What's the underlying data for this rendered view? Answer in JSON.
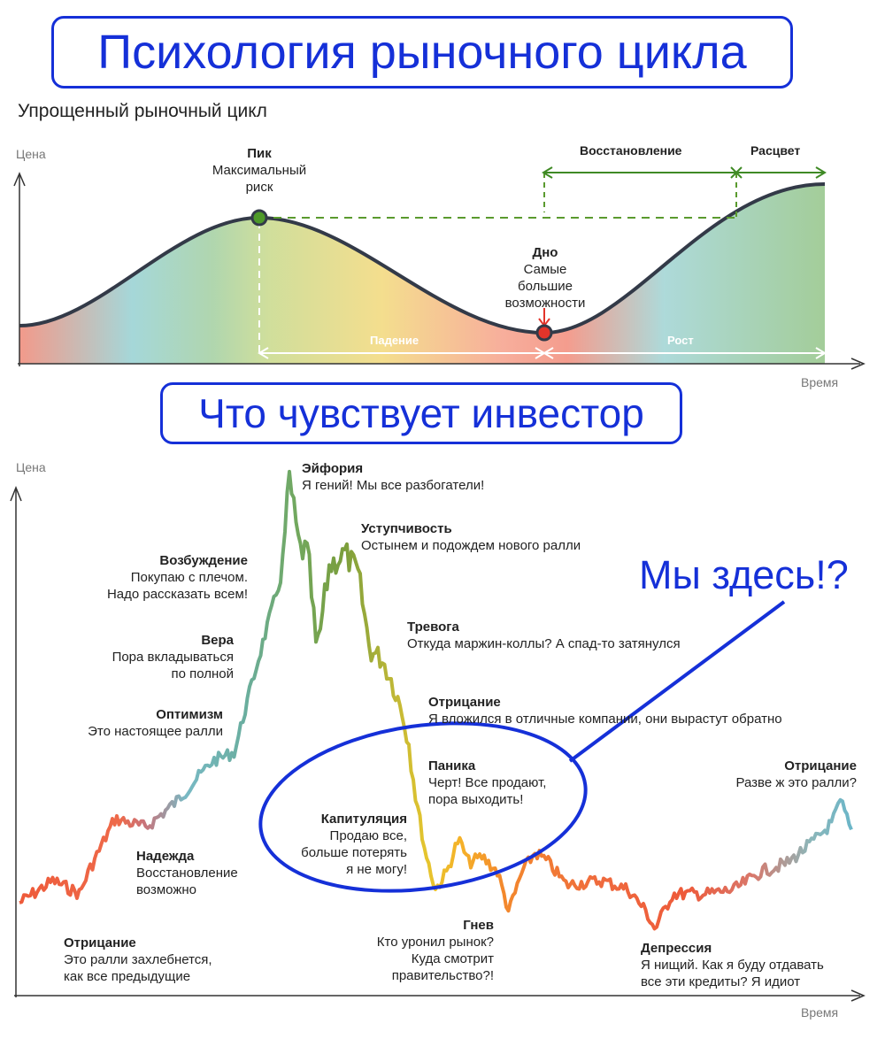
{
  "header": {
    "title": "Психология рыночного цикла",
    "subtitle": "Упрощенный рыночный цикл",
    "second_title": "Что чувствует инвестор",
    "annotation": "Мы здесь!?"
  },
  "top_chart": {
    "y_axis": "Цена",
    "x_axis": "Время",
    "peak": {
      "title": "Пик",
      "text": [
        "Максимальный",
        "риск"
      ]
    },
    "bottom": {
      "title": "Дно",
      "text": [
        "Самые",
        "большие",
        "возможности"
      ]
    },
    "fall_label": "Падение",
    "growth_label": "Рост",
    "recovery_label": "Восстановление",
    "bloom_label": "Расцвет"
  },
  "bottom_chart": {
    "y_axis": "Цена",
    "x_axis": "Время",
    "stages": [
      {
        "title": "Отрицание",
        "text": [
          "Это ралли захлебнется,",
          "как все предыдущие"
        ]
      },
      {
        "title": "Надежда",
        "text": [
          "Восстановление",
          "возможно"
        ]
      },
      {
        "title": "Оптимизм",
        "text": [
          "Это настоящее ралли"
        ]
      },
      {
        "title": "Вера",
        "text": [
          "Пора вкладываться",
          "по полной"
        ]
      },
      {
        "title": "Возбуждение",
        "text": [
          "Покупаю с плечом.",
          "Надо рассказать всем!"
        ]
      },
      {
        "title": "Эйфория",
        "text": [
          "Я гений! Мы все разбогатели!"
        ]
      },
      {
        "title": "Уступчивость",
        "text": [
          "Остынем и подождем нового ралли"
        ]
      },
      {
        "title": "Тревога",
        "text": [
          "Откуда маржин-коллы? А спад-то затянулся"
        ]
      },
      {
        "title": "Отрицание",
        "text": [
          "Я вложился в отличные компании, они вырастут обратно"
        ]
      },
      {
        "title": "Паника",
        "text": [
          "Черт! Все продают,",
          "пора выходить!"
        ]
      },
      {
        "title": "Капитуляция",
        "text": [
          "Продаю все,",
          "больше потерять",
          "я не могу!"
        ]
      },
      {
        "title": "Гнев",
        "text": [
          "Кто уронил рынок?",
          "Куда смотрит",
          "правительство?!"
        ]
      },
      {
        "title": "Депрессия",
        "text": [
          "Я нищий. Как я буду отдавать",
          "все эти кредиты? Я идиот"
        ]
      },
      {
        "title": "Отрицание",
        "text": [
          "Разве ж это ралли?"
        ]
      }
    ]
  }
}
